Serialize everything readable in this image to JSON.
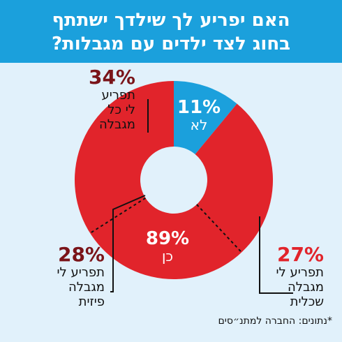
{
  "header": {
    "line1": "האם יפריע לך שילדך ישתתף",
    "line2": "בחוג לצד ילדים עם מגבלות?"
  },
  "chart_data": {
    "type": "pie",
    "variant": "donut",
    "slices": [
      {
        "label": "לא",
        "value": 11,
        "display": "11%",
        "color": "#1ba0dc"
      },
      {
        "label": "כן",
        "value": 89,
        "display": "89%",
        "color": "#e1242b"
      }
    ],
    "breakdown_of": "כן",
    "breakdown": [
      {
        "lines": [
          "תפריע לי",
          "מגבלה",
          "שכלית"
        ],
        "value": 27,
        "display": "27%"
      },
      {
        "lines": [
          "תפריע לי",
          "מגבלה",
          "פיזית"
        ],
        "value": 28,
        "display": "28%"
      },
      {
        "lines": [
          "תפריע",
          "לי כל",
          "מגבלה"
        ],
        "value": 34,
        "display": "34%"
      }
    ]
  },
  "callouts": {
    "top_left": {
      "pct": "34%",
      "line1": "תפריע",
      "line2": "לי כל",
      "line3": "מגבלה"
    },
    "bottom_left": {
      "pct": "28%",
      "line1": "תפריע לי",
      "line2": "מגבלה",
      "line3": "פיזית"
    },
    "bottom_right": {
      "pct": "27%",
      "line1": "תפריע לי",
      "line2": "מגבלה",
      "line3": "שכלית"
    }
  },
  "inner_labels": {
    "no": {
      "pct": "11%",
      "text": "לא"
    },
    "yes": {
      "pct": "89%",
      "text": "כן"
    }
  },
  "source": "*נתונים: החברה למתנ״סים",
  "colors": {
    "background": "#e1f1fb",
    "header": "#1ba0dc",
    "red": "#e1242b",
    "dark_red": "#7a1419",
    "blue": "#1ba0dc"
  }
}
